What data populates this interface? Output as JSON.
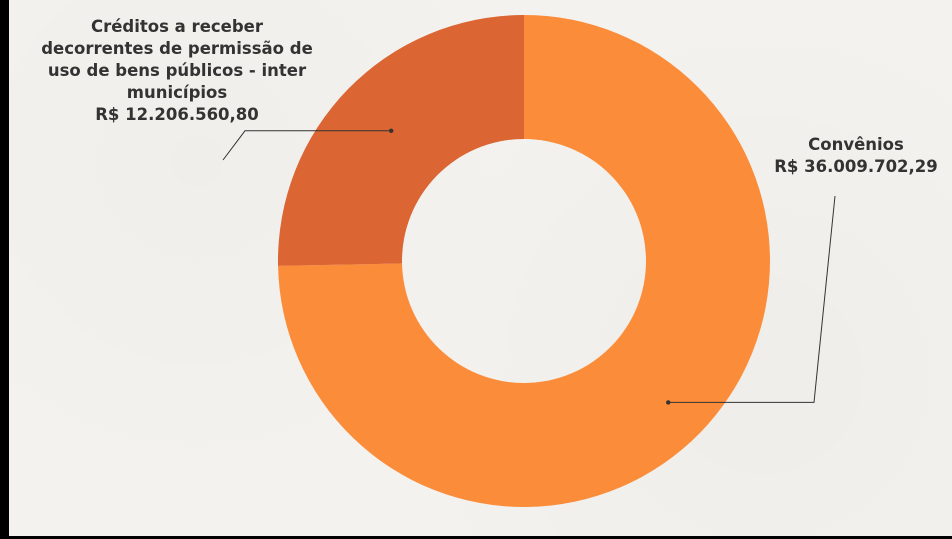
{
  "chart_data": {
    "type": "pie",
    "donut": true,
    "title": "",
    "categories": [
      "Convênios",
      "Créditos a receber decorrentes de permissão de uso de bens públicos - inter municípios"
    ],
    "values": [
      36009702.29,
      12206560.8
    ],
    "value_labels": [
      "R$ 36.009.702,29",
      "R$ 12.206.560,80"
    ],
    "colors": [
      "#fb8c3a",
      "#db6533"
    ],
    "legend": "none",
    "label_lines": {
      "creditos": [
        "Créditos a receber",
        "decorrentes de permissão de",
        "uso de bens públicos - inter",
        "municípios"
      ]
    }
  }
}
